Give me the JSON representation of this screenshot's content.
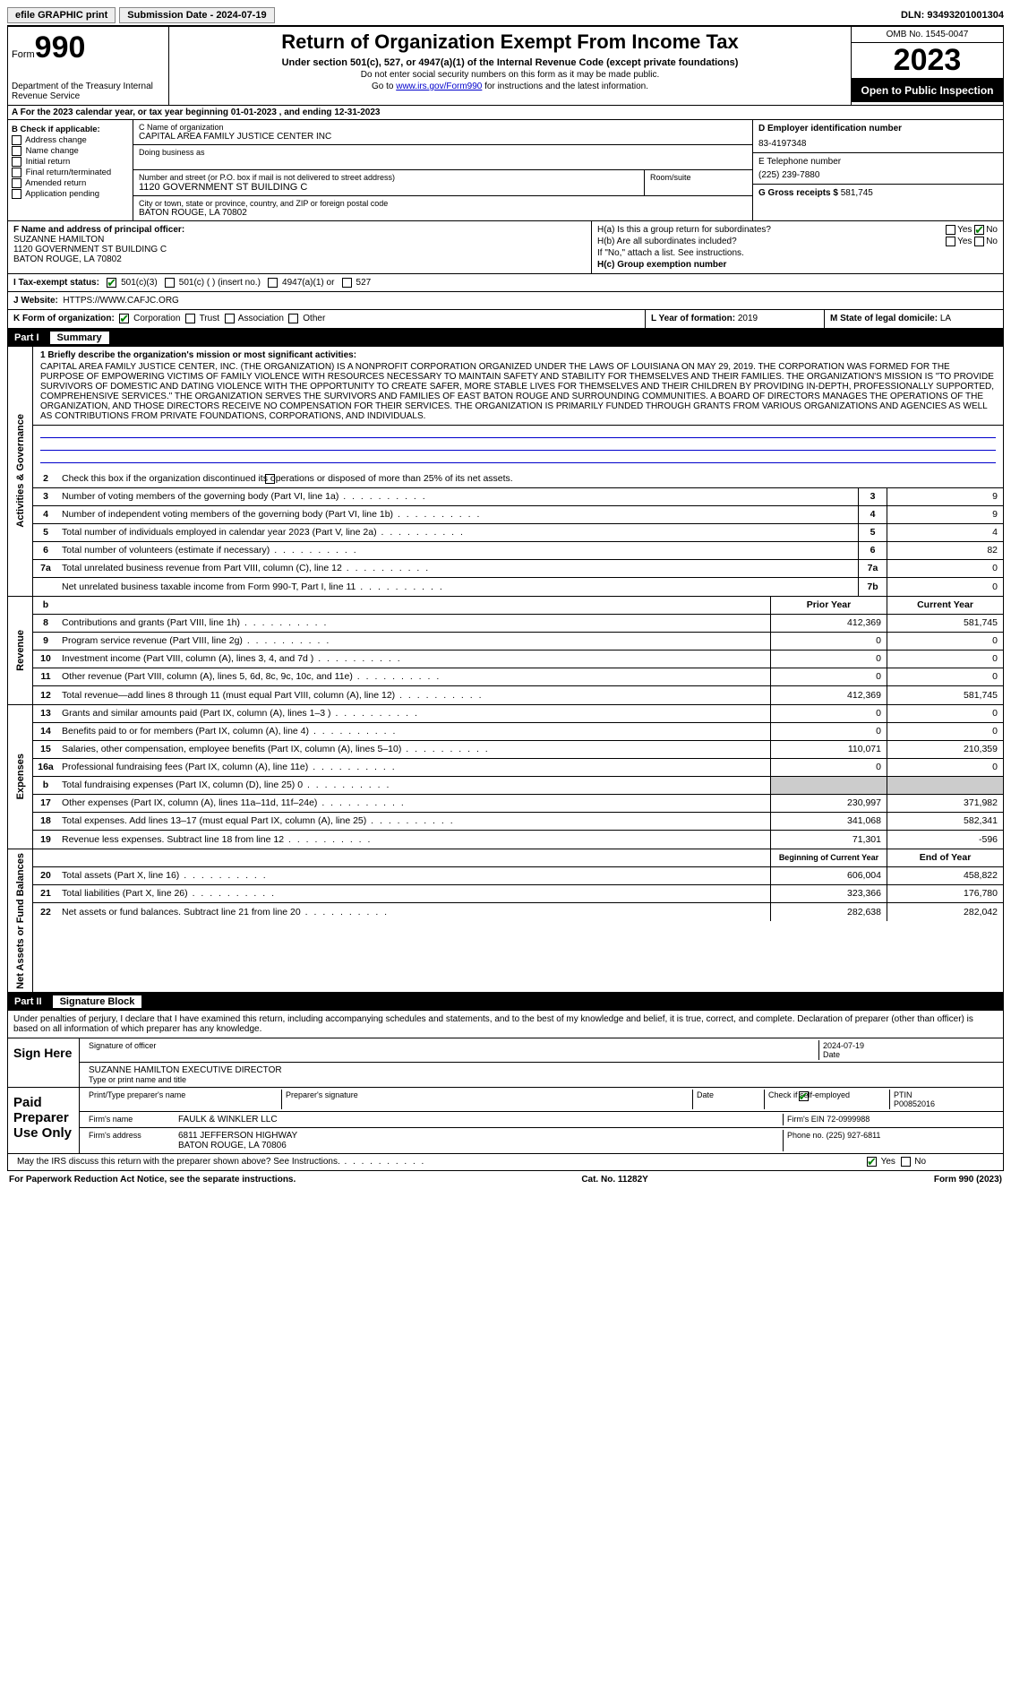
{
  "topbar": {
    "efile": "efile GRAPHIC print",
    "submission_label": "Submission Date - 2024-07-19",
    "dln": "DLN: 93493201001304"
  },
  "header": {
    "form_prefix": "Form",
    "form_number": "990",
    "dept": "Department of the Treasury Internal Revenue Service",
    "title": "Return of Organization Exempt From Income Tax",
    "subtitle": "Under section 501(c), 527, or 4947(a)(1) of the Internal Revenue Code (except private foundations)",
    "note1": "Do not enter social security numbers on this form as it may be made public.",
    "note2_pre": "Go to ",
    "note2_link": "www.irs.gov/Form990",
    "note2_post": " for instructions and the latest information.",
    "omb": "OMB No. 1545-0047",
    "year": "2023",
    "open": "Open to Public Inspection"
  },
  "row_a": "A For the 2023 calendar year, or tax year beginning 01-01-2023   , and ending 12-31-2023",
  "col_b": {
    "label": "B Check if applicable:",
    "items": [
      "Address change",
      "Name change",
      "Initial return",
      "Final return/terminated",
      "Amended return",
      "Application pending"
    ]
  },
  "col_c": {
    "c_label": "C Name of organization",
    "org": "CAPITAL AREA FAMILY JUSTICE CENTER INC",
    "dba_label": "Doing business as",
    "addr_label": "Number and street (or P.O. box if mail is not delivered to street address)",
    "addr": "1120 GOVERNMENT ST BUILDING C",
    "room_label": "Room/suite",
    "city_label": "City or town, state or province, country, and ZIP or foreign postal code",
    "city": "BATON ROUGE, LA  70802",
    "f_label": "F Name and address of principal officer:",
    "officer": "SUZANNE HAMILTON",
    "officer_addr1": "1120 GOVERNMENT ST BUILDING C",
    "officer_addr2": "BATON ROUGE, LA  70802"
  },
  "col_d": {
    "d_label": "D Employer identification number",
    "ein": "83-4197348",
    "e_label": "E Telephone number",
    "phone": "(225) 239-7880",
    "g_label": "G Gross receipts $",
    "gross": "581,745"
  },
  "h": {
    "a": "H(a)  Is this a group return for subordinates?",
    "b": "H(b)  Are all subordinates included?",
    "b_note": "If \"No,\" attach a list. See instructions.",
    "c": "H(c)  Group exemption number",
    "yes": "Yes",
    "no": "No"
  },
  "tax_status": {
    "label": "I  Tax-exempt status:",
    "o1": "501(c)(3)",
    "o2": "501(c) (  ) (insert no.)",
    "o3": "4947(a)(1) or",
    "o4": "527"
  },
  "website": {
    "label": "J  Website:",
    "value": "HTTPS://WWW.CAFJC.ORG"
  },
  "k": {
    "label": "K Form of organization:",
    "o1": "Corporation",
    "o2": "Trust",
    "o3": "Association",
    "o4": "Other"
  },
  "l": {
    "label": "L Year of formation:",
    "value": "2019"
  },
  "m": {
    "label": "M State of legal domicile:",
    "value": "LA"
  },
  "part1": {
    "label": "Part I",
    "title": "Summary"
  },
  "mission": {
    "label": "1  Briefly describe the organization's mission or most significant activities:",
    "text": "CAPITAL AREA FAMILY JUSTICE CENTER, INC. (THE ORGANIZATION) IS A NONPROFIT CORPORATION ORGANIZED UNDER THE LAWS OF LOUISIANA ON MAY 29, 2019. THE CORPORATION WAS FORMED FOR THE PURPOSE OF EMPOWERING VICTIMS OF FAMILY VIOLENCE WITH RESOURCES NECESSARY TO MAINTAIN SAFETY AND STABILITY FOR THEMSELVES AND THEIR FAMILIES. THE ORGANIZATION'S MISSION IS \"TO PROVIDE SURVIVORS OF DOMESTIC AND DATING VIOLENCE WITH THE OPPORTUNITY TO CREATE SAFER, MORE STABLE LIVES FOR THEMSELVES AND THEIR CHILDREN BY PROVIDING IN-DEPTH, PROFESSIONALLY SUPPORTED, COMPREHENSIVE SERVICES.\" THE ORGANIZATION SERVES THE SURVIVORS AND FAMILIES OF EAST BATON ROUGE AND SURROUNDING COMMUNITIES. A BOARD OF DIRECTORS MANAGES THE OPERATIONS OF THE ORGANIZATION, AND THOSE DIRECTORS RECEIVE NO COMPENSATION FOR THEIR SERVICES. THE ORGANIZATION IS PRIMARILY FUNDED THROUGH GRANTS FROM VARIOUS ORGANIZATIONS AND AGENCIES AS WELL AS CONTRIBUTIONS FROM PRIVATE FOUNDATIONS, CORPORATIONS, AND INDIVIDUALS."
  },
  "gov_lines": {
    "l2": "Check this box      if the organization discontinued its operations or disposed of more than 25% of its net assets.",
    "l3": {
      "desc": "Number of voting members of the governing body (Part VI, line 1a)",
      "k": "3",
      "v": "9"
    },
    "l4": {
      "desc": "Number of independent voting members of the governing body (Part VI, line 1b)",
      "k": "4",
      "v": "9"
    },
    "l5": {
      "desc": "Total number of individuals employed in calendar year 2023 (Part V, line 2a)",
      "k": "5",
      "v": "4"
    },
    "l6": {
      "desc": "Total number of volunteers (estimate if necessary)",
      "k": "6",
      "v": "82"
    },
    "l7a": {
      "desc": "Total unrelated business revenue from Part VIII, column (C), line 12",
      "k": "7a",
      "v": "0"
    },
    "l7b": {
      "desc": "Net unrelated business taxable income from Form 990-T, Part I, line 11",
      "k": "7b",
      "v": "0"
    }
  },
  "rev_hdr": {
    "b": "b",
    "prior": "Prior Year",
    "current": "Current Year"
  },
  "rev_lines": [
    {
      "n": "8",
      "d": "Contributions and grants (Part VIII, line 1h)",
      "p": "412,369",
      "c": "581,745"
    },
    {
      "n": "9",
      "d": "Program service revenue (Part VIII, line 2g)",
      "p": "0",
      "c": "0"
    },
    {
      "n": "10",
      "d": "Investment income (Part VIII, column (A), lines 3, 4, and 7d )",
      "p": "0",
      "c": "0"
    },
    {
      "n": "11",
      "d": "Other revenue (Part VIII, column (A), lines 5, 6d, 8c, 9c, 10c, and 11e)",
      "p": "0",
      "c": "0"
    },
    {
      "n": "12",
      "d": "Total revenue—add lines 8 through 11 (must equal Part VIII, column (A), line 12)",
      "p": "412,369",
      "c": "581,745"
    }
  ],
  "exp_lines": [
    {
      "n": "13",
      "d": "Grants and similar amounts paid (Part IX, column (A), lines 1–3 )",
      "p": "0",
      "c": "0"
    },
    {
      "n": "14",
      "d": "Benefits paid to or for members (Part IX, column (A), line 4)",
      "p": "0",
      "c": "0"
    },
    {
      "n": "15",
      "d": "Salaries, other compensation, employee benefits (Part IX, column (A), lines 5–10)",
      "p": "110,071",
      "c": "210,359"
    },
    {
      "n": "16a",
      "d": "Professional fundraising fees (Part IX, column (A), line 11e)",
      "p": "0",
      "c": "0"
    },
    {
      "n": "b",
      "d": "Total fundraising expenses (Part IX, column (D), line 25) 0",
      "p": "",
      "c": "",
      "grey": true
    },
    {
      "n": "17",
      "d": "Other expenses (Part IX, column (A), lines 11a–11d, 11f–24e)",
      "p": "230,997",
      "c": "371,982"
    },
    {
      "n": "18",
      "d": "Total expenses. Add lines 13–17 (must equal Part IX, column (A), line 25)",
      "p": "341,068",
      "c": "582,341"
    },
    {
      "n": "19",
      "d": "Revenue less expenses. Subtract line 18 from line 12",
      "p": "71,301",
      "c": "-596"
    }
  ],
  "net_hdr": {
    "prior": "Beginning of Current Year",
    "current": "End of Year"
  },
  "net_lines": [
    {
      "n": "20",
      "d": "Total assets (Part X, line 16)",
      "p": "606,004",
      "c": "458,822"
    },
    {
      "n": "21",
      "d": "Total liabilities (Part X, line 26)",
      "p": "323,366",
      "c": "176,780"
    },
    {
      "n": "22",
      "d": "Net assets or fund balances. Subtract line 21 from line 20",
      "p": "282,638",
      "c": "282,042"
    }
  ],
  "section_labels": {
    "gov": "Activities & Governance",
    "rev": "Revenue",
    "exp": "Expenses",
    "net": "Net Assets or Fund Balances"
  },
  "part2": {
    "label": "Part II",
    "title": "Signature Block"
  },
  "sig": {
    "penalty": "Under penalties of perjury, I declare that I have examined this return, including accompanying schedules and statements, and to the best of my knowledge and belief, it is true, correct, and complete. Declaration of preparer (other than officer) is based on all information of which preparer has any knowledge.",
    "sign_here": "Sign Here",
    "sig_officer": "Signature of officer",
    "officer_name": "SUZANNE HAMILTON EXECUTIVE DIRECTOR",
    "type_name": "Type or print name and title",
    "date": "Date",
    "date_val": "2024-07-19",
    "paid": "Paid Preparer Use Only",
    "prep_name_lbl": "Print/Type preparer's name",
    "prep_sig_lbl": "Preparer's signature",
    "check_self": "Check         if self-employed",
    "ptin_lbl": "PTIN",
    "ptin": "P00852016",
    "firm_lbl": "Firm's name",
    "firm": "FAULK & WINKLER LLC",
    "firm_ein_lbl": "Firm's EIN",
    "firm_ein": "72-0999988",
    "firm_addr_lbl": "Firm's address",
    "firm_addr1": "6811 JEFFERSON HIGHWAY",
    "firm_addr2": "BATON ROUGE, LA  70806",
    "phone_lbl": "Phone no.",
    "phone": "(225) 927-6811",
    "discuss": "May the IRS discuss this return with the preparer shown above? See Instructions."
  },
  "footer": {
    "left": "For Paperwork Reduction Act Notice, see the separate instructions.",
    "mid": "Cat. No. 11282Y",
    "right": "Form 990 (2023)"
  }
}
